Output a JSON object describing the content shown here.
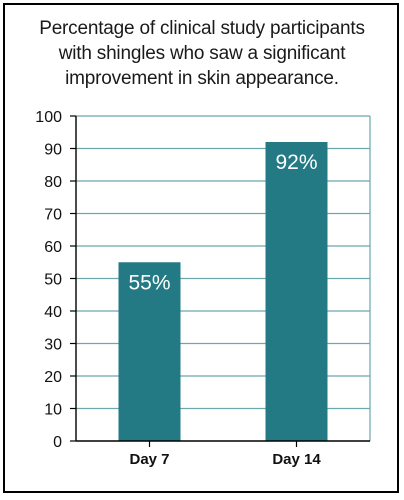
{
  "chart_data": {
    "type": "bar",
    "title_lines": [
      "Percentage of clinical study participants",
      "with shingles who saw a significant",
      "improvement in skin appearance."
    ],
    "categories": [
      "Day 7",
      "Day 14"
    ],
    "values": [
      55,
      92
    ],
    "data_labels": [
      "55%",
      "92%"
    ],
    "xlabel": "",
    "ylabel": "",
    "ylim": [
      0,
      100
    ],
    "yticks": [
      0,
      10,
      20,
      30,
      40,
      50,
      60,
      70,
      80,
      90,
      100
    ],
    "grid": true,
    "bar_color": "#237a85",
    "grid_color": "#6aa8ae",
    "legend": "none"
  }
}
